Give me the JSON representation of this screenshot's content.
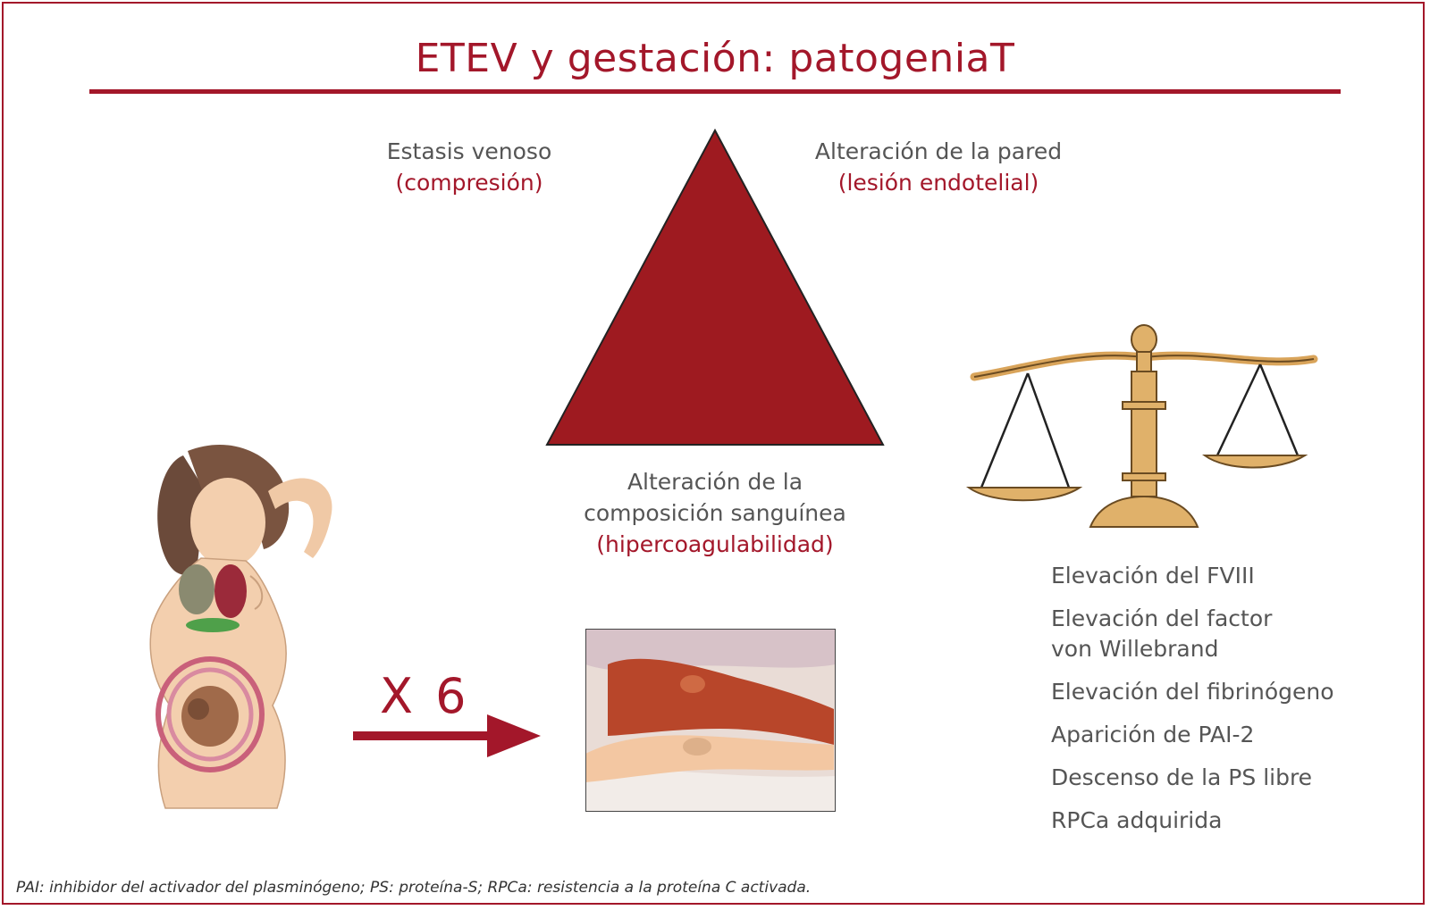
{
  "title": "ETEV y gestación: patogeniaT",
  "triad": {
    "left": {
      "line1": "Estasis venoso",
      "line2": "(compresión)"
    },
    "right": {
      "line1": "Alteración de la pared",
      "line2": "(lesión endotelial)"
    },
    "bottom": {
      "line1": "Alteración de la",
      "line2": "composición sanguínea",
      "line3": "(hipercoagulabilidad)"
    }
  },
  "multiplier": "X 6",
  "factors": [
    [
      "Elevación del FVIII"
    ],
    [
      "Elevación del factor",
      "von Willebrand"
    ],
    [
      "Elevación del fibrinógeno"
    ],
    [
      "Aparición de PAI-2"
    ],
    [
      "Descenso de la PS libre"
    ],
    [
      "RPCa adquirida"
    ]
  ],
  "footnote": "PAI: inhibidor del activador del plasminógeno; PS: proteína-S; RPCa: resistencia a la proteína C activada.",
  "colors": {
    "accent": "#a3172a",
    "text": "#555555",
    "gold": "#d9a45a"
  }
}
